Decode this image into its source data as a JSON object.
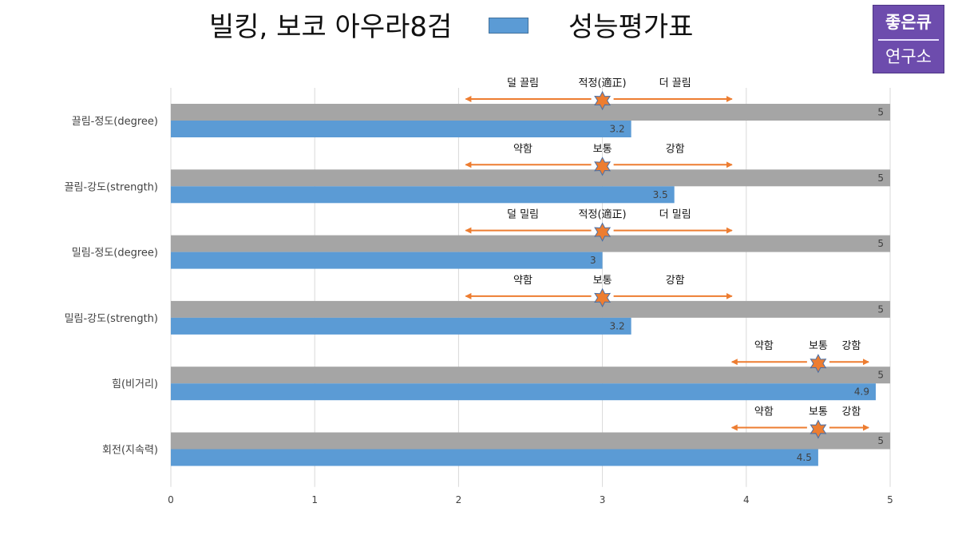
{
  "header": {
    "title_left": "빌킹, 보코 아우라8검",
    "title_right": "성능평가표",
    "legend_color": "#5b9bd5"
  },
  "logo": {
    "line1": "좋은큐",
    "line2": "연구소",
    "bg_color": "#6d4cad"
  },
  "chart_data": {
    "type": "bar",
    "orientation": "horizontal",
    "categories": [
      "끌림-정도(degree)",
      "끌림-강도(strength)",
      "밀림-정도(degree)",
      "밀림-강도(strength)",
      "힘(비거리)",
      "회전(지속력)"
    ],
    "series": [
      {
        "name": "",
        "color": "#a5a5a5",
        "values": [
          5,
          5,
          5,
          5,
          5,
          5
        ]
      },
      {
        "name": "성능평가표",
        "color": "#5b9bd5",
        "values": [
          3.2,
          3.5,
          3,
          3.2,
          4.9,
          4.5
        ]
      }
    ],
    "xlim": [
      0,
      5
    ],
    "xticks": [
      0,
      1,
      2,
      3,
      4,
      5
    ],
    "grid": "vertical",
    "annotations": [
      {
        "left": "덜 끌림",
        "center": "적정(適正)",
        "right": "더 끌림",
        "x_start": 2.05,
        "x_center": 3,
        "x_end": 3.9
      },
      {
        "left": "약함",
        "center": "보통",
        "right": "강함",
        "x_start": 2.05,
        "x_center": 3,
        "x_end": 3.9
      },
      {
        "left": "덜 밀림",
        "center": "적정(適正)",
        "right": "더 밀림",
        "x_start": 2.05,
        "x_center": 3,
        "x_end": 3.9
      },
      {
        "left": "약함",
        "center": "보통",
        "right": "강함",
        "x_start": 2.05,
        "x_center": 3,
        "x_end": 3.9
      },
      {
        "left": "약함",
        "center": "보통",
        "right": "강함",
        "x_start": 3.9,
        "x_center": 4.5,
        "x_end": 4.85
      },
      {
        "left": "약함",
        "center": "보통",
        "right": "강함",
        "x_start": 3.9,
        "x_center": 4.5,
        "x_end": 4.85
      }
    ],
    "annotation_color": "#ed7d31"
  }
}
